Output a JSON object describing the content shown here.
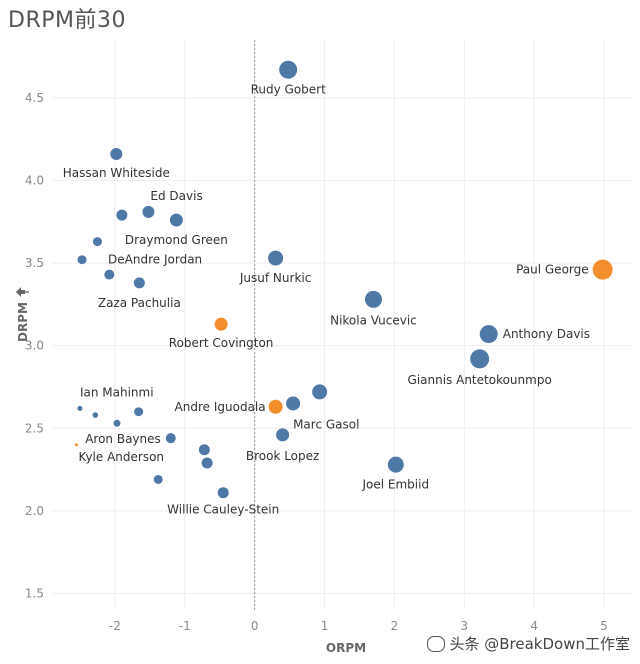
{
  "chart_data": {
    "type": "scatter",
    "title": "DRPM前30",
    "xlabel": "ORPM",
    "ylabel": "DRPM",
    "xlim": [
      -2.9,
      5.4
    ],
    "ylim": [
      1.4,
      4.85
    ],
    "xticks": [
      -2,
      -1,
      0,
      1,
      2,
      3,
      4,
      5
    ],
    "yticks": [
      1.5,
      2.0,
      2.5,
      3.0,
      3.5,
      4.0,
      4.5
    ],
    "reference_line_x": 0,
    "grid": true,
    "points": [
      {
        "name": "Rudy Gobert",
        "x": 0.48,
        "y": 4.67,
        "size": 9,
        "color": "#4e79a7"
      },
      {
        "name": "Hassan Whiteside",
        "x": -1.98,
        "y": 4.16,
        "size": 6,
        "color": "#4e79a7"
      },
      {
        "name": "Ed Davis",
        "x": -1.52,
        "y": 3.81,
        "size": 6,
        "color": "#4e79a7"
      },
      {
        "name": "",
        "x": -1.9,
        "y": 3.79,
        "size": 5.5,
        "color": "#4e79a7"
      },
      {
        "name": "Draymond Green",
        "x": -1.12,
        "y": 3.76,
        "size": 6.5,
        "color": "#4e79a7"
      },
      {
        "name": "",
        "x": -2.25,
        "y": 3.63,
        "size": 4.5,
        "color": "#4e79a7"
      },
      {
        "name": "DeAndre Jordan",
        "x": -2.47,
        "y": 3.52,
        "size": 4.5,
        "color": "#4e79a7"
      },
      {
        "name": "",
        "x": -2.08,
        "y": 3.43,
        "size": 5,
        "color": "#4e79a7"
      },
      {
        "name": "Zaza Pachulia",
        "x": -1.65,
        "y": 3.38,
        "size": 5.5,
        "color": "#4e79a7"
      },
      {
        "name": "Jusuf Nurkic",
        "x": 0.3,
        "y": 3.53,
        "size": 7.5,
        "color": "#4e79a7"
      },
      {
        "name": "Paul George",
        "x": 4.98,
        "y": 3.46,
        "size": 10,
        "color": "#f28e2b"
      },
      {
        "name": "Nikola Vucevic",
        "x": 1.7,
        "y": 3.28,
        "size": 8.5,
        "color": "#4e79a7"
      },
      {
        "name": "Robert Covington",
        "x": -0.48,
        "y": 3.13,
        "size": 6.5,
        "color": "#f28e2b"
      },
      {
        "name": "Anthony Davis",
        "x": 3.35,
        "y": 3.07,
        "size": 9,
        "color": "#4e79a7"
      },
      {
        "name": "Giannis Antetokounmpo",
        "x": 3.22,
        "y": 2.92,
        "size": 9.5,
        "color": "#4e79a7"
      },
      {
        "name": "",
        "x": 0.93,
        "y": 2.72,
        "size": 7.5,
        "color": "#4e79a7"
      },
      {
        "name": "Andre Iguodala",
        "x": 0.3,
        "y": 2.63,
        "size": 7,
        "color": "#f28e2b"
      },
      {
        "name": "Marc Gasol",
        "x": 0.55,
        "y": 2.65,
        "size": 7,
        "color": "#4e79a7"
      },
      {
        "name": "Ian Mahinmi",
        "x": -2.5,
        "y": 2.62,
        "size": 2.5,
        "color": "#4e79a7"
      },
      {
        "name": "",
        "x": -2.28,
        "y": 2.58,
        "size": 2.8,
        "color": "#4e79a7"
      },
      {
        "name": "",
        "x": -1.66,
        "y": 2.6,
        "size": 4.5,
        "color": "#4e79a7"
      },
      {
        "name": "",
        "x": -1.97,
        "y": 2.53,
        "size": 3.5,
        "color": "#4e79a7"
      },
      {
        "name": "Aron Baynes",
        "x": -1.2,
        "y": 2.44,
        "size": 5,
        "color": "#4e79a7"
      },
      {
        "name": "Kyle Anderson",
        "x": -2.55,
        "y": 2.4,
        "size": 1.5,
        "color": "#f28e2b"
      },
      {
        "name": "Brook Lopez",
        "x": 0.4,
        "y": 2.46,
        "size": 6.5,
        "color": "#4e79a7"
      },
      {
        "name": "",
        "x": -0.72,
        "y": 2.37,
        "size": 5.5,
        "color": "#4e79a7"
      },
      {
        "name": "",
        "x": -0.68,
        "y": 2.29,
        "size": 5.5,
        "color": "#4e79a7"
      },
      {
        "name": "Joel Embiid",
        "x": 2.02,
        "y": 2.28,
        "size": 8,
        "color": "#4e79a7"
      },
      {
        "name": "",
        "x": -1.38,
        "y": 2.19,
        "size": 4.5,
        "color": "#4e79a7"
      },
      {
        "name": "Willie Cauley-Stein",
        "x": -0.45,
        "y": 2.11,
        "size": 5.5,
        "color": "#4e79a7"
      }
    ],
    "labels": [
      {
        "text": "Rudy Gobert",
        "x": 0.48,
        "y": 4.67,
        "dx": 0,
        "dy": 24,
        "anchor": "middle"
      },
      {
        "text": "Hassan Whiteside",
        "x": -1.98,
        "y": 4.16,
        "dx": 0,
        "dy": 23,
        "anchor": "middle"
      },
      {
        "text": "Ed Davis",
        "x": -1.52,
        "y": 3.81,
        "dx": 2,
        "dy": -12,
        "anchor": "start"
      },
      {
        "text": "Draymond Green",
        "x": -1.12,
        "y": 3.76,
        "dx": 0,
        "dy": 24,
        "anchor": "middle"
      },
      {
        "text": "DeAndre Jordan",
        "x": -2.47,
        "y": 3.52,
        "dx": 26,
        "dy": 4,
        "anchor": "start"
      },
      {
        "text": "Zaza Pachulia",
        "x": -1.65,
        "y": 3.38,
        "dx": 0,
        "dy": 24,
        "anchor": "middle"
      },
      {
        "text": "Jusuf Nurkic",
        "x": 0.3,
        "y": 3.53,
        "dx": 0,
        "dy": 24,
        "anchor": "middle"
      },
      {
        "text": "Paul George",
        "x": 4.98,
        "y": 3.46,
        "dx": -14,
        "dy": 4,
        "anchor": "end"
      },
      {
        "text": "Nikola Vucevic",
        "x": 1.7,
        "y": 3.28,
        "dx": 0,
        "dy": 25,
        "anchor": "middle"
      },
      {
        "text": "Robert Covington",
        "x": -0.48,
        "y": 3.13,
        "dx": 0,
        "dy": 23,
        "anchor": "middle"
      },
      {
        "text": "Anthony Davis",
        "x": 3.35,
        "y": 3.07,
        "dx": 14,
        "dy": 4,
        "anchor": "start"
      },
      {
        "text": "Giannis Antetokounmpo",
        "x": 3.22,
        "y": 2.92,
        "dx": 0,
        "dy": 25,
        "anchor": "middle"
      },
      {
        "text": "Andre Iguodala",
        "x": 0.3,
        "y": 2.63,
        "dx": -10,
        "dy": 4,
        "anchor": "end"
      },
      {
        "text": "Marc Gasol",
        "x": 0.55,
        "y": 2.65,
        "dx": 0,
        "dy": 25,
        "anchor": "start"
      },
      {
        "text": "Ian Mahinmi",
        "x": -2.5,
        "y": 2.62,
        "dx": 0,
        "dy": -12,
        "anchor": "start"
      },
      {
        "text": "Aron Baynes",
        "x": -1.2,
        "y": 2.44,
        "dx": -10,
        "dy": 5,
        "anchor": "end"
      },
      {
        "text": "Kyle Anderson",
        "x": -2.55,
        "y": 2.4,
        "dx": 2,
        "dy": 16,
        "anchor": "start"
      },
      {
        "text": "Brook Lopez",
        "x": 0.4,
        "y": 2.46,
        "dx": 0,
        "dy": 25,
        "anchor": "middle"
      },
      {
        "text": "Joel Embiid",
        "x": 2.02,
        "y": 2.28,
        "dx": 0,
        "dy": 24,
        "anchor": "middle"
      },
      {
        "text": "Willie Cauley-Stein",
        "x": -0.45,
        "y": 2.11,
        "dx": 0,
        "dy": 21,
        "anchor": "middle"
      }
    ]
  },
  "axis_icon": "pin-icon",
  "watermark": {
    "icon": "chat-bubble-icon",
    "text": "头条 @BreakDown工作室"
  }
}
